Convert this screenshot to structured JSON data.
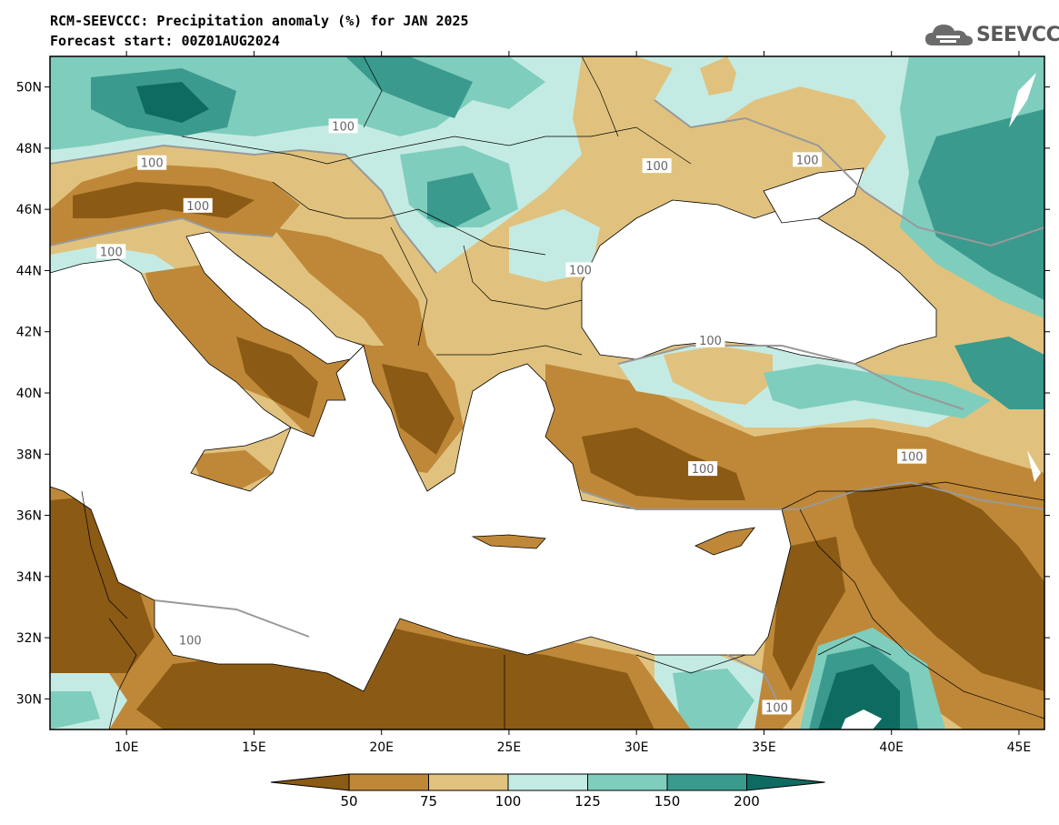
{
  "title_line1": "RCM-SEEVCCC: Precipitation anomaly (%) for JAN 2025",
  "title_line2": "Forecast start: 00Z01AUG2024",
  "logo_text": "SEEVCCC",
  "logo_icon": "cloud-icon",
  "colors": {
    "below_50": "#8b5a14",
    "50_75": "#bf8838",
    "75_100": "#e0c27e",
    "100_125": "#c4ebe3",
    "125_150": "#7fcdbd",
    "150_200": "#3a9a8e",
    "above_200": "#0e6b62",
    "sea": "#ffffff",
    "contour": "#999999"
  },
  "chart_data": {
    "type": "heatmap",
    "title": "RCM-SEEVCCC: Precipitation anomaly (%) for JAN 2025",
    "subtitle": "Forecast start: 00Z01AUG2024",
    "units": "%",
    "x_range": [
      7,
      46
    ],
    "y_range": [
      29,
      51
    ],
    "x_ticks": [
      "10E",
      "15E",
      "20E",
      "25E",
      "30E",
      "35E",
      "40E",
      "45E"
    ],
    "y_ticks": [
      "30N",
      "32N",
      "34N",
      "36N",
      "38N",
      "40N",
      "42N",
      "44N",
      "46N",
      "48N",
      "50N"
    ],
    "x_tick_values": [
      10,
      15,
      20,
      25,
      30,
      35,
      40,
      45
    ],
    "y_tick_values": [
      30,
      32,
      34,
      36,
      38,
      40,
      42,
      44,
      46,
      48,
      50
    ],
    "colorbar_levels": [
      "50",
      "75",
      "100",
      "125",
      "150",
      "200"
    ],
    "contour_labels": [
      {
        "text": "100",
        "lon": 18.5,
        "lat": 48.7
      },
      {
        "text": "100",
        "lon": 11.0,
        "lat": 47.5
      },
      {
        "text": "100",
        "lon": 12.8,
        "lat": 46.1
      },
      {
        "text": "100",
        "lon": 9.4,
        "lat": 44.6
      },
      {
        "text": "100",
        "lon": 27.8,
        "lat": 44.0
      },
      {
        "text": "100",
        "lon": 30.8,
        "lat": 47.4
      },
      {
        "text": "100",
        "lon": 36.7,
        "lat": 47.6
      },
      {
        "text": "100",
        "lon": 32.9,
        "lat": 41.7
      },
      {
        "text": "100",
        "lon": 32.6,
        "lat": 37.5
      },
      {
        "text": "100",
        "lon": 40.8,
        "lat": 37.9
      },
      {
        "text": "100",
        "lon": 12.5,
        "lat": 31.9
      },
      {
        "text": "100",
        "lon": 35.5,
        "lat": 29.7
      }
    ]
  }
}
